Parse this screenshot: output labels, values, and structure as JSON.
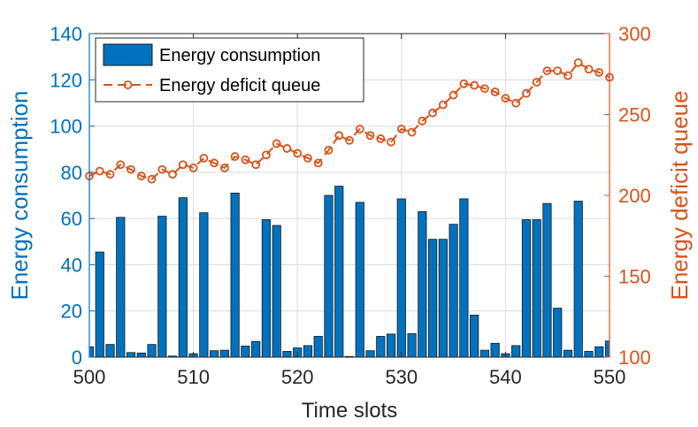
{
  "chart_data": {
    "type": "bar+line",
    "xlabel": "Time slots",
    "ylabel_left": "Energy consumption",
    "ylabel_right": "Energy deficit queue",
    "xlim": [
      500,
      550
    ],
    "ylim_left": [
      0,
      140
    ],
    "ylim_right": [
      100,
      300
    ],
    "x_ticks": [
      500,
      510,
      520,
      530,
      540,
      550
    ],
    "y_ticks_left": [
      0,
      20,
      40,
      60,
      80,
      100,
      120,
      140
    ],
    "y_ticks_right": [
      100,
      150,
      200,
      250,
      300
    ],
    "grid": true,
    "legend_position": "top-left",
    "colors": {
      "bars": "#0072bd",
      "line": "#d95319",
      "left_axis": "#0072bd",
      "right_axis": "#d95319"
    },
    "series": [
      {
        "name": "Energy consumption",
        "kind": "bar",
        "axis": "left",
        "x": [
          500,
          501,
          502,
          503,
          504,
          505,
          506,
          507,
          508,
          509,
          510,
          511,
          512,
          513,
          514,
          515,
          516,
          517,
          518,
          519,
          520,
          521,
          522,
          523,
          524,
          525,
          526,
          527,
          528,
          529,
          530,
          531,
          532,
          533,
          534,
          535,
          536,
          537,
          538,
          539,
          540,
          541,
          542,
          543,
          544,
          545,
          546,
          547,
          548,
          549,
          550
        ],
        "values": [
          4.5,
          45.5,
          5.5,
          60.5,
          2,
          1.8,
          5.5,
          61,
          0.5,
          69,
          1.5,
          62.5,
          2.8,
          3,
          71,
          4.8,
          6.8,
          59.5,
          57,
          2.5,
          4,
          5,
          9,
          70,
          74,
          0.3,
          67,
          2.8,
          9,
          10,
          68.5,
          10.2,
          63,
          51,
          51,
          57.5,
          68.5,
          18.2,
          3,
          6,
          1.5,
          5,
          59.5,
          59.5,
          66.5,
          21.2,
          3,
          67.5,
          2.5,
          4.5,
          7
        ]
      },
      {
        "name": "Energy deficit queue",
        "kind": "line",
        "axis": "right",
        "x": [
          500,
          501,
          502,
          503,
          504,
          505,
          506,
          507,
          508,
          509,
          510,
          511,
          512,
          513,
          514,
          515,
          516,
          517,
          518,
          519,
          520,
          521,
          522,
          523,
          524,
          525,
          526,
          527,
          528,
          529,
          530,
          531,
          532,
          533,
          534,
          535,
          536,
          537,
          538,
          539,
          540,
          541,
          542,
          543,
          544,
          545,
          546,
          547,
          548,
          549,
          550
        ],
        "values": [
          212,
          215,
          213,
          219,
          216,
          212,
          210,
          216,
          213,
          219,
          217,
          223,
          220,
          217,
          224,
          222,
          219,
          225,
          232,
          229,
          226,
          223,
          220,
          228,
          237,
          234,
          241,
          237,
          235,
          233,
          241,
          239,
          246,
          251,
          256,
          262,
          269,
          268,
          266,
          264,
          260,
          257,
          263,
          270,
          277,
          277,
          274,
          282,
          278,
          276,
          273
        ]
      }
    ]
  }
}
